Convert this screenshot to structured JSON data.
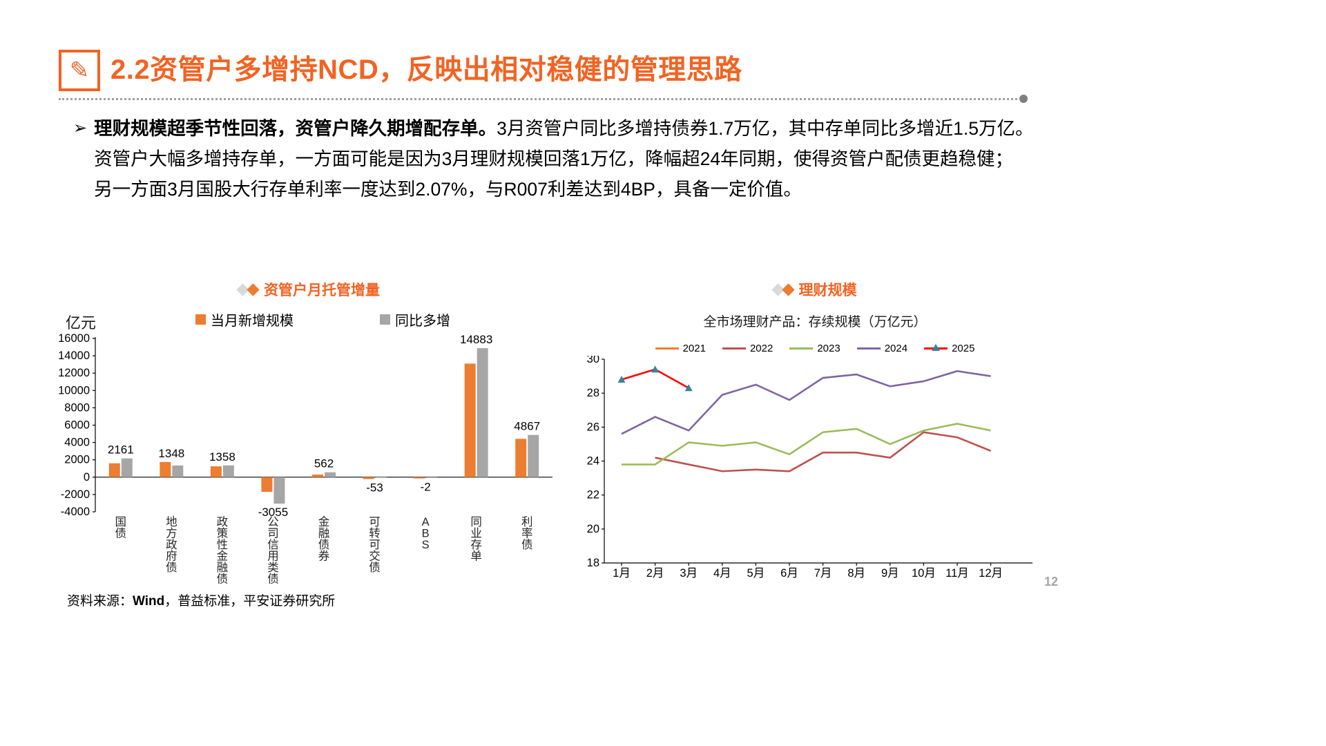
{
  "page": {
    "number": "12",
    "accent_color": "#F26322"
  },
  "header": {
    "title": "2.2资管户多增持NCD，反映出相对稳健的管理思路"
  },
  "bullet": {
    "bold": "理财规模超季节性回落，资管户降久期增配存单。",
    "line1_rest": "3月资管户同比多增持债券1.7万亿，其中存单同比多增近1.5万亿。",
    "line2": "资管户大幅多增持存单，一方面可能是因为3月理财规模回落1万亿，降幅超24年同期，使得资管户配债更趋稳健；",
    "line3": "另一方面3月国股大行存单利率一度达到2.07%，与R007利差达到4BP，具备一定价值。"
  },
  "footer": {
    "source_prefix": "资料来源：",
    "source_bold": "Wind",
    "source_rest": "，普益标准，平安证券研究所"
  },
  "chart_data": [
    {
      "type": "bar",
      "title": "资管户月托管增量",
      "unit_label": "亿元",
      "categories": [
        "国债",
        "地方政府债",
        "政策性金融债",
        "公司信用类债",
        "金融债券",
        "可转可交债",
        "ABS",
        "同业存单",
        "利率债"
      ],
      "series": [
        {
          "name": "当月新增规模",
          "color": "#ED7D31",
          "values": [
            1600,
            1750,
            1250,
            -1700,
            300,
            -220,
            -150,
            13100,
            4420
          ]
        },
        {
          "name": "同比多增",
          "color": "#A6A6A6",
          "values": [
            2161,
            1348,
            1358,
            -3055,
            562,
            -53,
            -2,
            14883,
            4867
          ]
        }
      ],
      "data_labels": [
        2161,
        1348,
        1358,
        -3055,
        562,
        -53,
        -2,
        14883,
        4867
      ],
      "ylim": [
        -4000,
        16000
      ],
      "ytick_step": 2000,
      "grid": false,
      "legend_position": "top"
    },
    {
      "type": "line",
      "title": "理财规模",
      "subtitle": "全市场理财产品：存续规模（万亿元）",
      "x_labels": [
        "1月",
        "2月",
        "3月",
        "4月",
        "5月",
        "6月",
        "7月",
        "8月",
        "9月",
        "10月",
        "11月",
        "12月"
      ],
      "series": [
        {
          "name": "2021",
          "color": "#ED7D31",
          "values": []
        },
        {
          "name": "2022",
          "color": "#C0504D",
          "values": [
            null,
            24.2,
            23.8,
            23.4,
            23.5,
            23.4,
            24.5,
            24.5,
            24.2,
            25.7,
            25.4,
            24.6
          ]
        },
        {
          "name": "2023",
          "color": "#9BBB59",
          "values": [
            23.8,
            23.8,
            25.1,
            24.9,
            25.1,
            24.4,
            25.7,
            25.9,
            25.0,
            25.8,
            26.2,
            25.8
          ]
        },
        {
          "name": "2024",
          "color": "#8064A2",
          "values": [
            25.6,
            26.6,
            25.8,
            27.9,
            28.5,
            27.6,
            28.9,
            29.1,
            28.4,
            28.7,
            29.3,
            29.0
          ]
        },
        {
          "name": "2025",
          "color": "#FF0000",
          "marker": "triangle",
          "marker_color": "#31859C",
          "values": [
            28.8,
            29.4,
            28.3
          ]
        }
      ],
      "ylim": [
        18,
        30
      ],
      "ytick_step": 2,
      "grid": false,
      "legend_position": "top"
    }
  ]
}
